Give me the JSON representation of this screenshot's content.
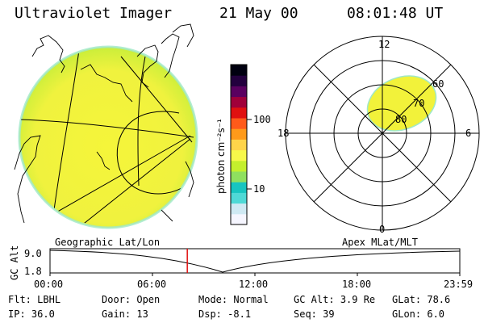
{
  "header": {
    "instrument": "Ultraviolet Imager",
    "date": "21 May 00",
    "time": "08:01:48 UT"
  },
  "colorbar": {
    "label": "photon cm⁻²s⁻¹",
    "ticks": [
      "100",
      "10"
    ],
    "colors": [
      "#f6f6ff",
      "#cfe9f3",
      "#4fd9d6",
      "#17c5c0",
      "#8fe05f",
      "#c4ef2d",
      "#f7f84a",
      "#ffd44a",
      "#ff9a1a",
      "#ff5a1a",
      "#e01010",
      "#a0003a",
      "#5a0060",
      "#23003e",
      "#000010"
    ]
  },
  "polar": {
    "mlt_labels": [
      "12",
      "18",
      "6",
      "0"
    ],
    "lat_labels": [
      "60",
      "70",
      "80"
    ]
  },
  "timeline": {
    "left_title": "Geographic Lat/Lon",
    "right_title": "Apex MLat/MLT",
    "axis_label": "GC Alt",
    "y_ticks": [
      "9.0",
      "1.8"
    ],
    "x_ticks": [
      "00:00",
      "06:00",
      "12:00",
      "18:00",
      "23:59"
    ],
    "current_time_fraction": 0.335,
    "marker_color": "#e01010"
  },
  "footer": {
    "row1": [
      {
        "label": "Flt:",
        "value": "LBHL"
      },
      {
        "label": "Door:",
        "value": "Open"
      },
      {
        "label": "Mode:",
        "value": "Normal"
      },
      {
        "label": "GC Alt:",
        "value": "3.9 Re"
      },
      {
        "label": "GLat:",
        "value": "78.6"
      }
    ],
    "row2": [
      {
        "label": "IP:",
        "value": "36.0"
      },
      {
        "label": "Gain:",
        "value": "13"
      },
      {
        "label": "Dsp:",
        "value": "-8.1"
      },
      {
        "label": "Seq:",
        "value": "39"
      },
      {
        "label": "GLon:",
        "value": "6.0"
      }
    ]
  }
}
